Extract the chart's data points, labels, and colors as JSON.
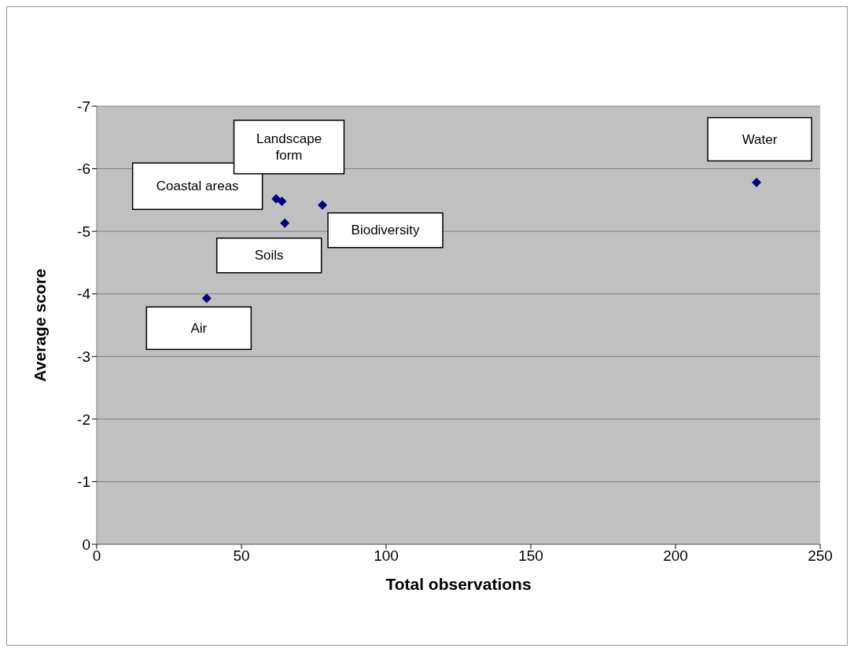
{
  "chart_data": {
    "type": "scatter",
    "xlabel": "Total observations",
    "ylabel": "Average score",
    "x": [
      62,
      64,
      65,
      78,
      38,
      228
    ],
    "values": [
      -5.52,
      -5.48,
      -5.13,
      -5.42,
      -3.93,
      -5.78
    ],
    "color": "#000080",
    "marker": "diamond",
    "grid": "y",
    "xlim": [
      0,
      250
    ],
    "xticks": [
      0,
      50,
      100,
      150,
      200,
      250
    ],
    "ylim": [
      0,
      -7
    ],
    "yticks": [
      0,
      -1,
      -2,
      -3,
      -4,
      -5,
      -6,
      -7
    ],
    "annotations": [
      {
        "text": "Coastal areas",
        "x": 62,
        "y": -5.52
      },
      {
        "text": "Landscape form",
        "x": 64,
        "y": -5.48
      },
      {
        "text": "Soils",
        "x": 65,
        "y": -5.13
      },
      {
        "text": "Biodiversity",
        "x": 78,
        "y": -5.42
      },
      {
        "text": "Air",
        "x": 38,
        "y": -3.93
      },
      {
        "text": "Water",
        "x": 228,
        "y": -5.78
      }
    ]
  }
}
